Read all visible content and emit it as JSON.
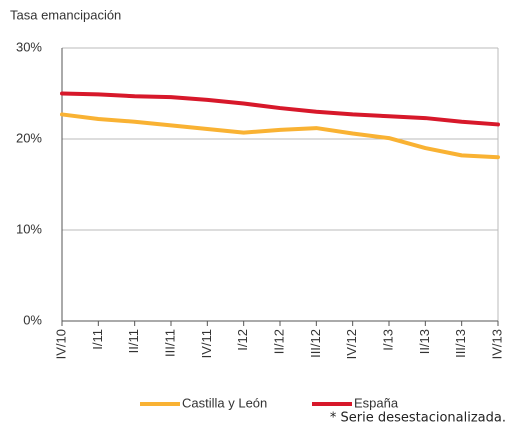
{
  "chart_data": {
    "type": "line",
    "y_axis_label": "Tasa emancipación",
    "footnote": "* Serie desestacionalizada.",
    "categories": [
      "IV/10",
      "I/11",
      "II/11",
      "III/11",
      "IV/11",
      "I/12",
      "II/12",
      "III/12",
      "IV/12",
      "I/13",
      "II/13",
      "III/13",
      "IV/13"
    ],
    "series": [
      {
        "name": "Castilla y León",
        "color": "#f9b233",
        "values": [
          22.7,
          22.2,
          21.9,
          21.5,
          21.1,
          20.7,
          21.0,
          21.2,
          20.6,
          20.1,
          19.0,
          18.2,
          18.0
        ]
      },
      {
        "name": "España",
        "color": "#d7182a",
        "values": [
          25.0,
          24.9,
          24.7,
          24.6,
          24.3,
          23.9,
          23.4,
          23.0,
          22.7,
          22.5,
          22.3,
          21.9,
          21.6
        ]
      }
    ],
    "ylim": [
      0,
      30
    ],
    "yticks": [
      {
        "value": 0,
        "label": "0%"
      },
      {
        "value": 10,
        "label": "10%"
      },
      {
        "value": 20,
        "label": "20%"
      },
      {
        "value": 30,
        "label": "30%"
      }
    ],
    "grid": true,
    "legend": "bottom"
  }
}
